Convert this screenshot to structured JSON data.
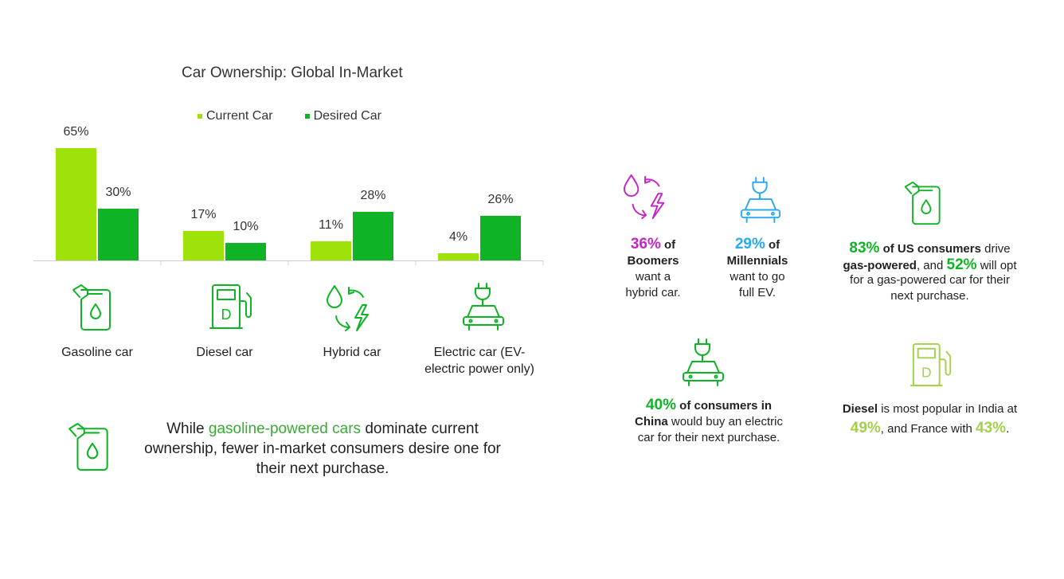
{
  "chart_data": {
    "type": "bar",
    "title": "Car Ownership: Global In-Market",
    "categories": [
      "Gasoline car",
      "Diesel car",
      "Hybrid car",
      "Electric car (EV-electric power only)"
    ],
    "category_lines": [
      [
        "Gasoline car"
      ],
      [
        "Diesel car"
      ],
      [
        "Hybrid car"
      ],
      [
        "Electric car (EV-",
        "electric power only)"
      ]
    ],
    "series": [
      {
        "name": "Current Car",
        "values": [
          65,
          17,
          11,
          4
        ],
        "labels": [
          "65%",
          "17%",
          "11%",
          "4%"
        ],
        "color": "#9ee20a"
      },
      {
        "name": "Desired Car",
        "values": [
          30,
          10,
          28,
          26
        ],
        "labels": [
          "30%",
          "10%",
          "28%",
          "26%"
        ],
        "color": "#0fb426"
      }
    ],
    "ylim": [
      0,
      70
    ],
    "legend": "top",
    "grid": false,
    "category_icons": [
      "fuel-can-icon",
      "diesel-pump-icon",
      "hybrid-icon",
      "electric-car-icon"
    ]
  },
  "colors": {
    "lime": "#9ee20a",
    "green": "#0fb426",
    "magenta": "#c425c8",
    "blue": "#29a9ef",
    "light_green": "#a3d14a",
    "text_green": "#3aaa35"
  },
  "note": {
    "pre": "While ",
    "highlight": "gasoline-powered cars",
    "post": " dominate current ownership, fewer in-market consumers desire one for their next purchase."
  },
  "stats": {
    "boomers": {
      "pct": "36%",
      "of": " of",
      "group": "Boomers",
      "text1": "want a",
      "text2": "hybrid car."
    },
    "millennials": {
      "pct": "29%",
      "of": " of",
      "group": "Millennials",
      "text1": "want to go",
      "text2": "full EV."
    },
    "us": {
      "pct1": "83%",
      "bold1": " of US consumers",
      "mid1": " drive",
      "bold2": "gas-powered",
      "mid2": ", and ",
      "pct2": "52%",
      "mid3": " will opt",
      "line3": "for a gas-powered car for their",
      "line4": "next purchase."
    },
    "china": {
      "pct": "40%",
      "bold1": " of consumers in",
      "bold2": "China",
      "text1": " would buy an electric",
      "text2": "car for their next purchase."
    },
    "diesel": {
      "bold": "Diesel",
      "text1": " is most popular in India at",
      "pct1": "49%",
      "mid": ", and France with ",
      "pct2": "43%",
      "end": "."
    }
  }
}
